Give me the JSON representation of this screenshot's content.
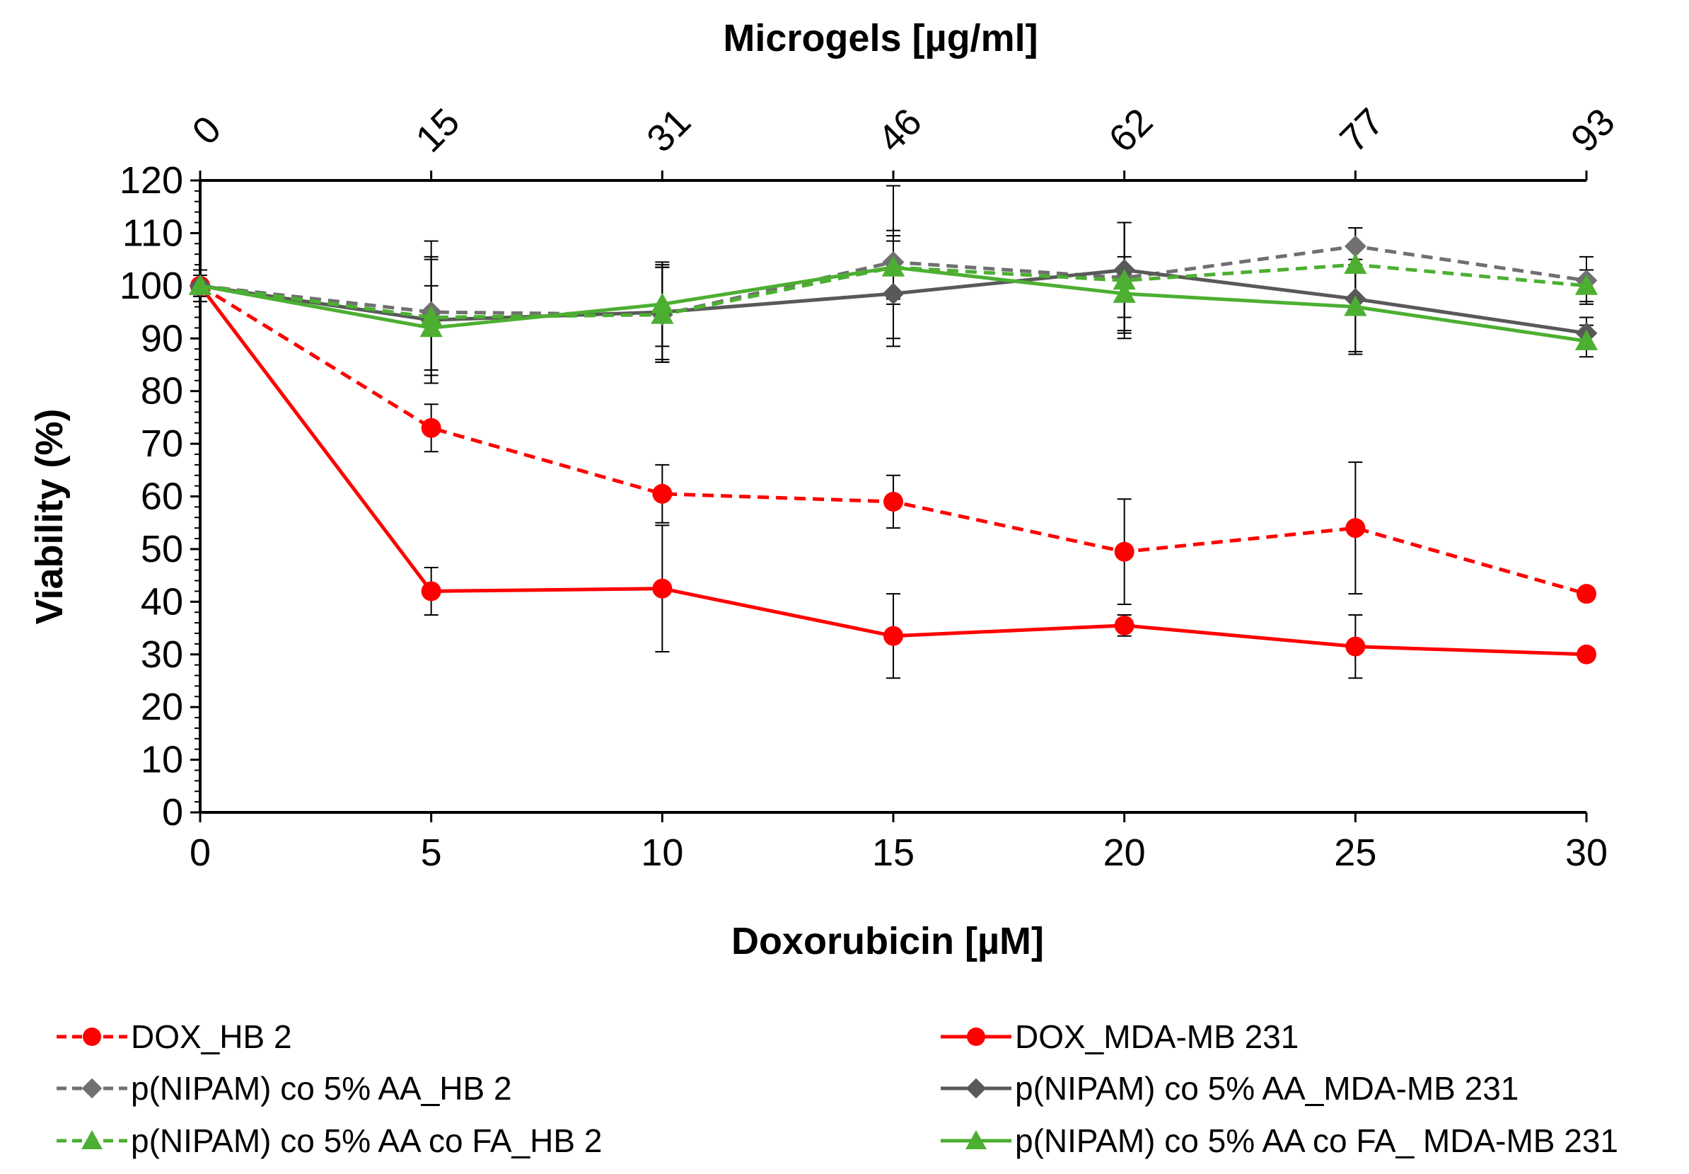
{
  "chart_data": {
    "type": "line",
    "title": "",
    "xlabel": "Doxorubicin [µM]",
    "x2label": "Microgels [µg/ml]",
    "ylabel": "Viability (%)",
    "xlim": [
      0,
      30
    ],
    "ylim": [
      0,
      120
    ],
    "x": [
      0,
      5,
      10,
      15,
      20,
      25,
      30
    ],
    "x_tick_labels": [
      "0",
      "5",
      "10",
      "15",
      "20",
      "25",
      "30"
    ],
    "x2_tick_labels": [
      "0",
      "15",
      "31",
      "46",
      "62",
      "77",
      "93"
    ],
    "y_ticks": [
      0,
      10,
      20,
      30,
      40,
      50,
      60,
      70,
      80,
      90,
      100,
      110,
      120
    ],
    "y_tick_labels": [
      "0",
      "10",
      "20",
      "30",
      "40",
      "50",
      "60",
      "70",
      "80",
      "90",
      "100",
      "110",
      "120"
    ],
    "grid": false,
    "legend_position": "bottom",
    "series": [
      {
        "name": "DOX_HB 2",
        "color": "#ff0000",
        "dash": "dashed",
        "marker": "circle",
        "values": [
          100,
          73,
          60.5,
          59,
          49.5,
          54,
          41.5
        ],
        "errors": [
          3,
          4.5,
          5.5,
          5,
          10,
          12.5,
          0
        ]
      },
      {
        "name": "DOX_MDA-MB 231",
        "color": "#ff0000",
        "dash": "solid",
        "marker": "circle",
        "values": [
          100,
          42,
          42.5,
          33.5,
          35.5,
          31.5,
          30
        ],
        "errors": [
          0,
          4.5,
          12,
          8,
          2,
          6,
          0
        ]
      },
      {
        "name": "p(NIPAM) co 5% AA_HB 2",
        "color": "#707070",
        "dash": "dashed",
        "marker": "diamond",
        "values": [
          100,
          95,
          94.5,
          104.5,
          101.5,
          107.5,
          101
        ],
        "errors": [
          3,
          13.5,
          9,
          14.5,
          10.5,
          3.5,
          4.5
        ]
      },
      {
        "name": "p(NIPAM) co 5% AA_MDA-MB 231",
        "color": "#595959",
        "dash": "solid",
        "marker": "diamond",
        "values": [
          100,
          93.5,
          95,
          98.5,
          103,
          97.5,
          91
        ],
        "errors": [
          2,
          12,
          9,
          10,
          9,
          10,
          3
        ]
      },
      {
        "name": "p(NIPAM) co 5% AA co FA_HB 2",
        "color": "#4caf32",
        "dash": "dashed",
        "marker": "triangle",
        "values": [
          100,
          94,
          94.5,
          103.5,
          101,
          104,
          100
        ],
        "errors": [
          2,
          11,
          9,
          6,
          11,
          7,
          3
        ]
      },
      {
        "name": "p(NIPAM) co 5% AA co FA_ MDA-MB 231",
        "color": "#4caf32",
        "dash": "solid",
        "marker": "triangle",
        "values": [
          100,
          92,
          96.5,
          103.5,
          98.5,
          96,
          89.5
        ],
        "errors": [
          2,
          8,
          8,
          7,
          7,
          9,
          3
        ]
      }
    ]
  }
}
